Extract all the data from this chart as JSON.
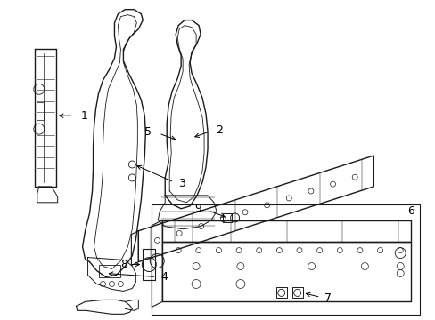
{
  "background_color": "#ffffff",
  "line_color": "#1a1a1a",
  "label_color": "#1a1a1a",
  "fig_width": 4.89,
  "fig_height": 3.6,
  "dpi": 100
}
